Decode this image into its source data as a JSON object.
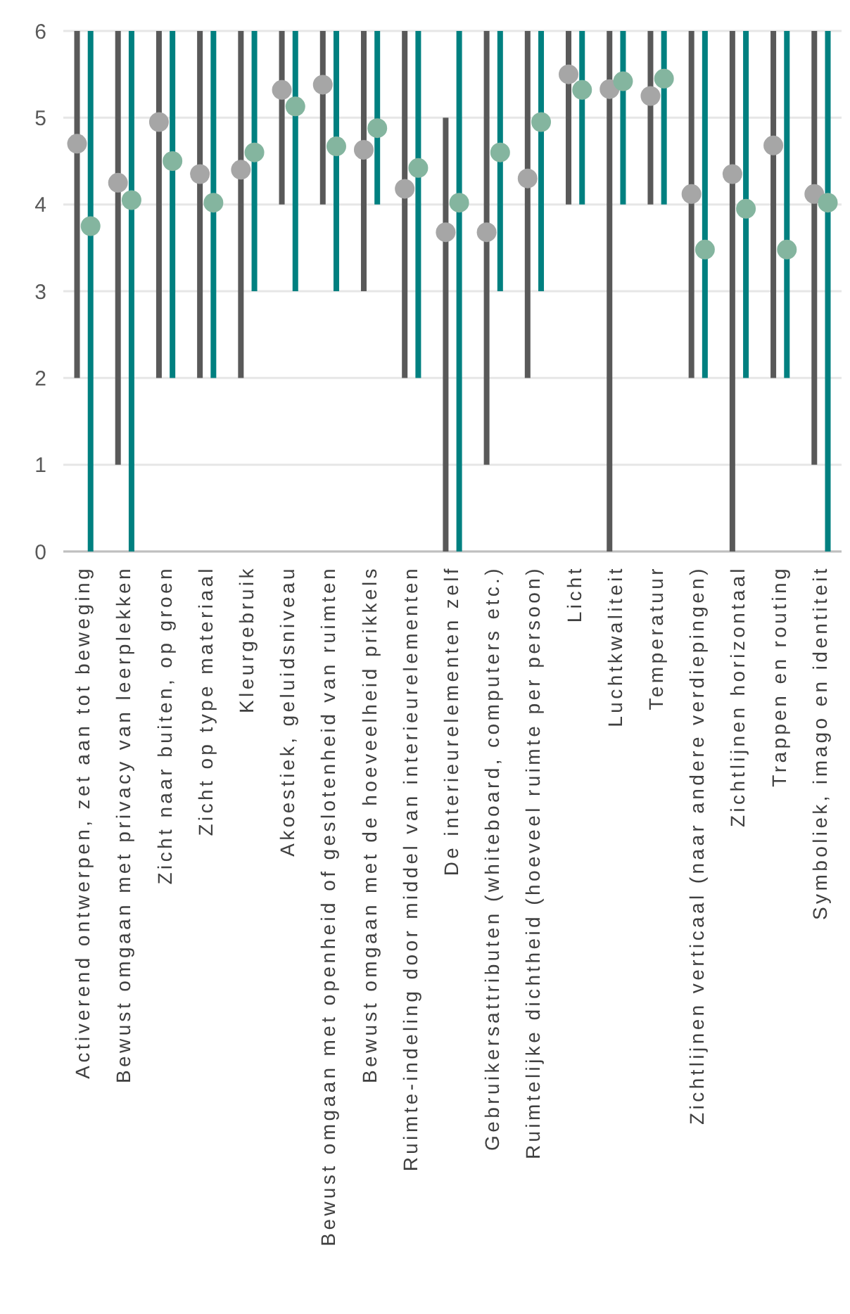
{
  "chart_data": {
    "type": "bar",
    "categories": [
      "Activerend ontwerpen, zet aan tot beweging",
      "Bewust omgaan met privacy van leerplekken",
      "Zicht naar buiten, op groen",
      "Zicht op type materiaal",
      "Kleurgebruik",
      "Akoestiek, geluidsniveau",
      "Bewust omgaan met openheid of geslotenheid van ruimten",
      "Bewust omgaan met de hoeveelheid prikkels",
      "Ruimte-indeling door middel van interieurelementen",
      "De interieurelementen zelf",
      "Gebruikersattributen (whiteboard, computers etc.)",
      "Ruimtelijke dichtheid (hoeveel ruimte per persoon)",
      "Licht",
      "Luchtkwaliteit",
      "Temperatuur",
      "Zichtlijnen verticaal (naar andere verdiepingen)",
      "Zichtlijnen horizontaal",
      "Trappen en routing",
      "Symboliek, imago en identiteit"
    ],
    "series": [
      {
        "color": "#595959",
        "base": [
          2,
          1,
          2,
          2,
          2,
          4,
          4,
          3,
          2,
          0,
          1,
          2,
          4,
          0,
          4,
          2,
          0,
          2,
          1
        ],
        "values": [
          4,
          5,
          4,
          4,
          4,
          2,
          2,
          3,
          4,
          5,
          5,
          4,
          2,
          6,
          2,
          4,
          6,
          4,
          5
        ]
      },
      {
        "color": "#008080",
        "base": [
          0,
          0,
          2,
          2,
          3,
          3,
          3,
          4,
          2,
          0,
          3,
          3,
          4,
          4,
          4,
          2,
          2,
          2,
          0
        ],
        "values": [
          6,
          6,
          4,
          4,
          3,
          3,
          3,
          2,
          4,
          6,
          3,
          3,
          2,
          2,
          2,
          4,
          4,
          4,
          6
        ]
      },
      {
        "type": "scatter",
        "color": "#a6a6a6",
        "values": [
          4.7,
          4.25,
          4.95,
          4.35,
          4.4,
          5.32,
          5.38,
          4.63,
          4.18,
          3.68,
          3.68,
          4.3,
          5.5,
          5.33,
          5.25,
          4.12,
          4.35,
          4.68,
          4.12
        ]
      },
      {
        "type": "scatter",
        "color": "#84b59f",
        "values": [
          3.75,
          4.05,
          4.5,
          4.02,
          4.6,
          5.13,
          4.67,
          4.88,
          4.42,
          4.02,
          4.6,
          4.95,
          5.32,
          5.42,
          5.45,
          3.48,
          3.95,
          3.48,
          4.02
        ]
      }
    ],
    "ylim": [
      0,
      6
    ],
    "yticks": [
      0,
      1,
      2,
      3,
      4,
      5,
      6
    ],
    "grid": "y",
    "marker": "circle"
  }
}
